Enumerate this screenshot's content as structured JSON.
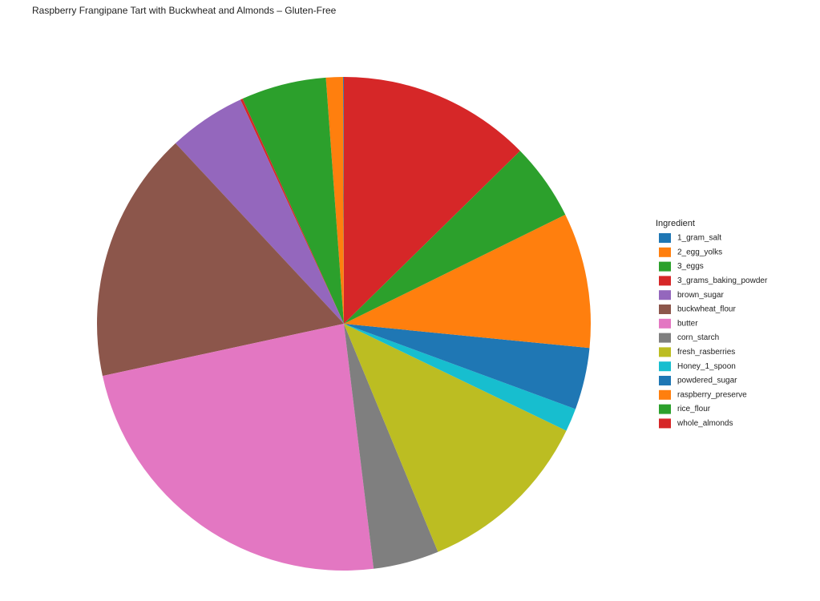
{
  "chart_data": {
    "type": "pie",
    "title": "Raspberry Frangipane Tart with Buckwheat and Almonds – Gluten-Free",
    "legend_title": "Ingredient",
    "legend_position": "right",
    "direction": "counterclockwise",
    "categories": [
      "1_gram_salt",
      "2_egg_yolks",
      "3_eggs",
      "3_grams_baking_powder",
      "brown_sugar",
      "buckwheat_flour",
      "butter",
      "corn_starch",
      "fresh_rasberries",
      "Honey_1_spoon",
      "powdered_sugar",
      "raspberry_preserve",
      "rice_flour",
      "whole_almonds"
    ],
    "values": [
      1,
      22,
      110,
      3,
      100,
      325,
      465,
      85,
      230,
      30,
      80,
      175,
      100,
      250
    ],
    "colors": [
      "#1f77b4",
      "#ff7f0e",
      "#2ca02c",
      "#d62728",
      "#9467bd",
      "#8c564b",
      "#e377c2",
      "#7f7f7f",
      "#bcbd22",
      "#17becf",
      "#1f77b4",
      "#ff7f0e",
      "#2ca02c",
      "#d62728"
    ]
  }
}
